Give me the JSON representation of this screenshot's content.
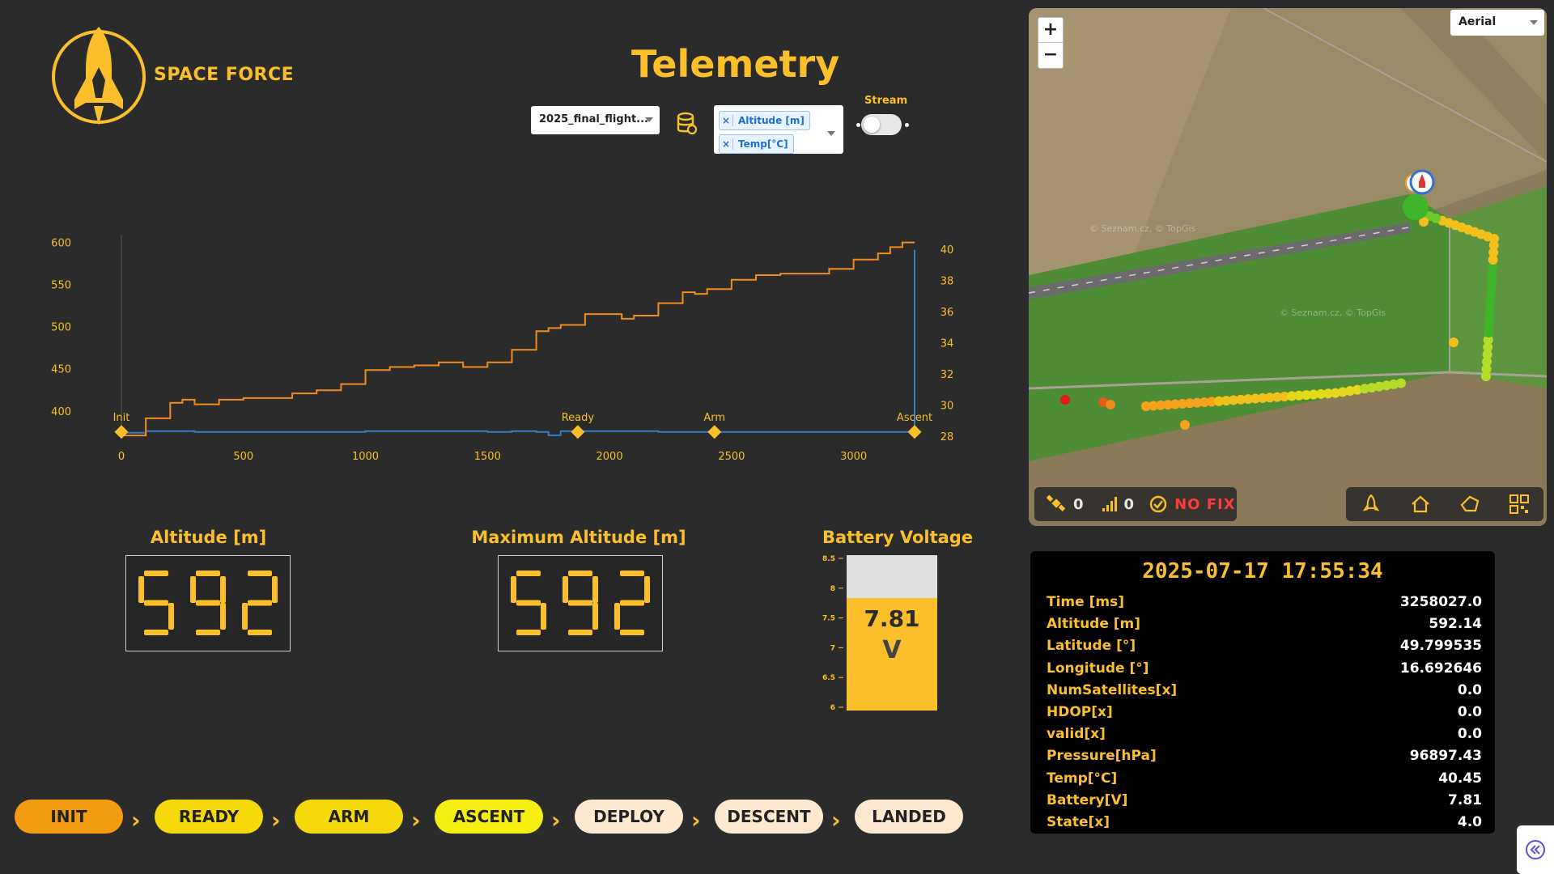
{
  "brand": "SPACE FORCE",
  "title": "Telemetry",
  "file_select": {
    "value": "2025_final_flight..."
  },
  "series_select": {
    "chips": [
      "Altitude [m]",
      "Temp[°C]"
    ]
  },
  "stream": {
    "label": "Stream",
    "on": false
  },
  "chart_data": {
    "type": "line",
    "x_ticks": [
      "0",
      "500",
      "1000",
      "1500",
      "2000",
      "2500",
      "3000"
    ],
    "y_left_ticks": [
      "600",
      "550",
      "500",
      "450",
      "400"
    ],
    "y_right_ticks": [
      "40",
      "38",
      "36",
      "34",
      "32",
      "30",
      "28"
    ],
    "x_range": [
      0,
      3250
    ],
    "y_left_range": [
      370,
      610
    ],
    "y_right_range": [
      28,
      41
    ],
    "series": [
      {
        "name": "Altitude [m]",
        "axis": "left",
        "color": "#2f7ec7",
        "points": [
          [
            0,
            375
          ],
          [
            100,
            377
          ],
          [
            200,
            377
          ],
          [
            300,
            376
          ],
          [
            400,
            376
          ],
          [
            500,
            376
          ],
          [
            700,
            376
          ],
          [
            900,
            376
          ],
          [
            1000,
            377
          ],
          [
            1200,
            377
          ],
          [
            1500,
            376
          ],
          [
            1600,
            377
          ],
          [
            1700,
            376
          ],
          [
            1750,
            372
          ],
          [
            1800,
            377
          ],
          [
            2000,
            377
          ],
          [
            2200,
            376
          ],
          [
            2400,
            376
          ],
          [
            2600,
            376
          ],
          [
            2800,
            376
          ],
          [
            3000,
            376
          ],
          [
            3240,
            376
          ],
          [
            3250,
            592
          ]
        ]
      },
      {
        "name": "Temp[°C]",
        "axis": "right",
        "color": "#f28a1c",
        "points": [
          [
            0,
            28.1
          ],
          [
            100,
            29.2
          ],
          [
            200,
            30.2
          ],
          [
            250,
            30.4
          ],
          [
            300,
            30.1
          ],
          [
            400,
            30.4
          ],
          [
            500,
            30.5
          ],
          [
            600,
            30.5
          ],
          [
            700,
            30.8
          ],
          [
            800,
            31
          ],
          [
            900,
            31.4
          ],
          [
            1000,
            32.3
          ],
          [
            1100,
            32.5
          ],
          [
            1200,
            32.6
          ],
          [
            1300,
            32.8
          ],
          [
            1400,
            32.5
          ],
          [
            1500,
            32.8
          ],
          [
            1600,
            33.6
          ],
          [
            1700,
            34.8
          ],
          [
            1750,
            35
          ],
          [
            1800,
            35.2
          ],
          [
            1900,
            35.9
          ],
          [
            2000,
            35.9
          ],
          [
            2050,
            35.6
          ],
          [
            2100,
            35.8
          ],
          [
            2200,
            36.6
          ],
          [
            2300,
            37.3
          ],
          [
            2350,
            37.2
          ],
          [
            2400,
            37.5
          ],
          [
            2500,
            38.1
          ],
          [
            2600,
            38.4
          ],
          [
            2700,
            38.5
          ],
          [
            2800,
            38.5
          ],
          [
            2900,
            38.8
          ],
          [
            3000,
            39.4
          ],
          [
            3100,
            39.8
          ],
          [
            3150,
            40.2
          ],
          [
            3200,
            40.5
          ],
          [
            3250,
            40.5
          ]
        ]
      }
    ],
    "markers": [
      {
        "label": "Init",
        "x": 0
      },
      {
        "label": "Ready",
        "x": 1870
      },
      {
        "label": "Arm",
        "x": 2430
      },
      {
        "label": "Ascent",
        "x": 3250
      }
    ]
  },
  "altitude": {
    "label": "Altitude [m]",
    "value": "592"
  },
  "max_altitude": {
    "label": "Maximum Altitude [m]",
    "value": "592"
  },
  "battery": {
    "label": "Battery Voltage",
    "value": "7.81",
    "unit": "V",
    "ticks": [
      "8.5",
      "8",
      "7.5",
      "7",
      "6.5",
      "6"
    ],
    "min": 6,
    "max": 8.5,
    "level": 7.81
  },
  "states": [
    {
      "label": "INIT",
      "color": "#f39c12"
    },
    {
      "label": "READY",
      "color": "#f5d90a"
    },
    {
      "label": "ARM",
      "color": "#f5d90a"
    },
    {
      "label": "ASCENT",
      "color": "#f5ee10"
    },
    {
      "label": "DEPLOY",
      "color": "#fde9cf"
    },
    {
      "label": "DESCENT",
      "color": "#fde9cf"
    },
    {
      "label": "LANDED",
      "color": "#fde9cf"
    }
  ],
  "map": {
    "zoom_in": "+",
    "zoom_out": "−",
    "type": "Aerial",
    "watermark": "© Seznam.cz, © TopGis",
    "satellites": "0",
    "signal": "0",
    "fix": "NO FIX"
  },
  "data_panel": {
    "datetime": "2025-07-17 17:55:34",
    "rows": [
      {
        "k": "Time [ms]",
        "v": "3258027.0"
      },
      {
        "k": "Altitude [m]",
        "v": "592.14"
      },
      {
        "k": "Latitude [°]",
        "v": "49.799535"
      },
      {
        "k": "Longitude [°]",
        "v": "16.692646"
      },
      {
        "k": "NumSatellites[x]",
        "v": "0.0"
      },
      {
        "k": "HDOP[x]",
        "v": "0.0"
      },
      {
        "k": "valid[x]",
        "v": "0.0"
      },
      {
        "k": "Pressure[hPa]",
        "v": "96897.43"
      },
      {
        "k": "Temp[°C]",
        "v": "40.45"
      },
      {
        "k": "Battery[V]",
        "v": "7.81"
      },
      {
        "k": "State[x]",
        "v": "4.0"
      }
    ]
  }
}
